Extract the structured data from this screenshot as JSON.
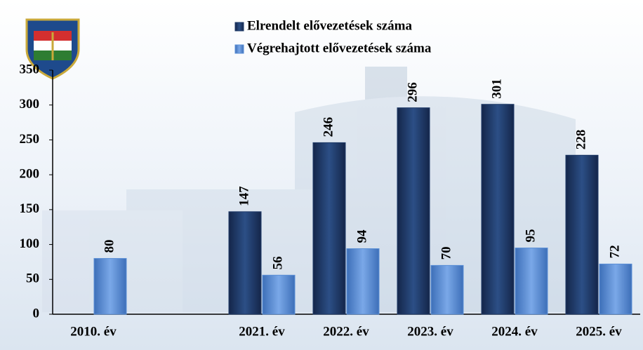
{
  "chart_data": {
    "type": "bar",
    "categories": [
      "2010. év",
      null,
      "2021. év",
      "2022. év",
      "2023. év",
      "2024. év",
      "2025. év"
    ],
    "series": [
      {
        "name": "Elrendelt elővezetések száma",
        "color": "#1f3a68",
        "values": [
          null,
          null,
          147,
          246,
          296,
          301,
          228
        ]
      },
      {
        "name": "Végrehajtott elővezetések száma",
        "color": "#5b8fd6",
        "values": [
          80,
          null,
          56,
          94,
          70,
          95,
          72
        ]
      }
    ],
    "ylim": [
      0,
      350
    ],
    "yticks": [
      0,
      50,
      100,
      150,
      200,
      250,
      300,
      350
    ],
    "grid": false,
    "legend": "top"
  }
}
